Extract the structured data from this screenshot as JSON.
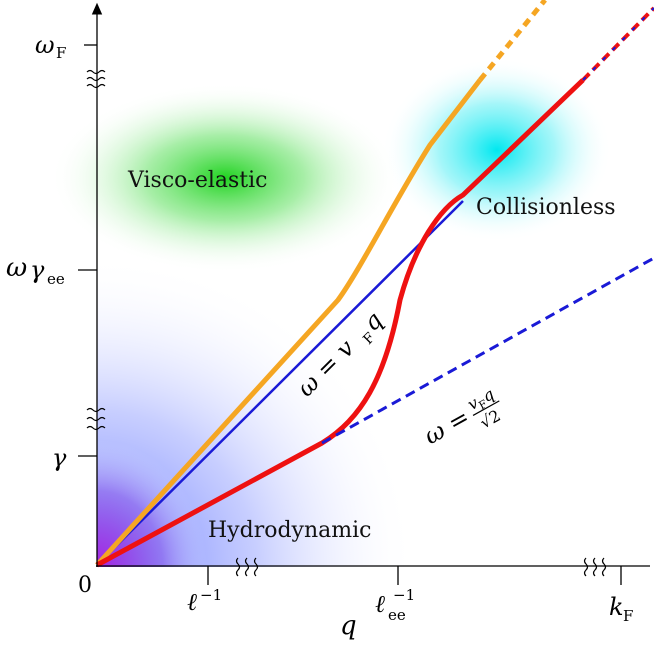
{
  "regions": {
    "visco_elastic": "Visco-elastic",
    "collisionless": "Collisionless",
    "hydrodynamic": "Hydrodynamic"
  },
  "axes": {
    "x_symbol": "q",
    "y_symbol": "ω",
    "origin": "0"
  },
  "x_ticks": {
    "ell_base": "ℓ",
    "ell_exp": "−1",
    "ell_ee_base": "ℓ",
    "ell_ee_sub": "ee",
    "ell_ee_exp": "−1",
    "kF_base": "k",
    "kF_sub": "F"
  },
  "y_ticks": {
    "omegaF_base": "ω",
    "omegaF_sub": "F",
    "gamma_ee_base": "γ",
    "gamma_ee_sub": "ee",
    "gamma": "γ"
  },
  "equations": {
    "linear_lhs": "ω = v",
    "linear_sub": "F",
    "linear_rhs": "q",
    "sqrt_lhs": "ω =",
    "sqrt_num_v": "v",
    "sqrt_num_sub": "F",
    "sqrt_num_q": "q",
    "sqrt_den": "√2"
  },
  "colors": {
    "orange": "#f5a623",
    "red": "#ee1111",
    "blue": "#1a1ad6",
    "green_blob": "#22cc22",
    "cyan_blob": "#00e5ee",
    "blue_blob": "#6f7fff",
    "purple_blob": "#b030e0"
  }
}
